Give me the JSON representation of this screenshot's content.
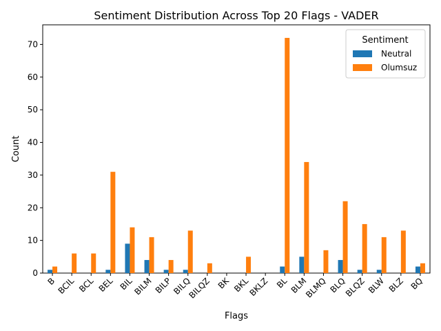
{
  "chart_data": {
    "type": "bar",
    "title": "Sentiment Distribution Across Top 20 Flags - VADER",
    "xlabel": "Flags",
    "ylabel": "Count",
    "ylim": [
      0,
      76
    ],
    "yticks": [
      0,
      10,
      20,
      30,
      40,
      50,
      60,
      70
    ],
    "categories": [
      "B",
      "BCIL",
      "BCL",
      "BEL",
      "BIL",
      "BILM",
      "BILP",
      "BILQ",
      "BILQZ",
      "BK",
      "BKL",
      "BKLZ",
      "BL",
      "BLM",
      "BLMQ",
      "BLQ",
      "BLQZ",
      "BLW",
      "BLZ",
      "BQ"
    ],
    "series": [
      {
        "name": "Neutral",
        "color": "#1f77b4",
        "values": [
          1,
          0,
          0,
          1,
          9,
          4,
          1,
          1,
          0,
          0,
          0,
          0,
          2,
          5,
          0,
          4,
          1,
          1,
          0,
          2
        ]
      },
      {
        "name": "Olumsuz",
        "color": "#ff7f0e",
        "values": [
          2,
          6,
          6,
          31,
          14,
          11,
          4,
          13,
          3,
          0,
          5,
          0,
          72,
          34,
          7,
          22,
          15,
          11,
          13,
          3
        ]
      }
    ],
    "legend": {
      "title": "Sentiment",
      "position": "top-right"
    },
    "grid": false
  }
}
